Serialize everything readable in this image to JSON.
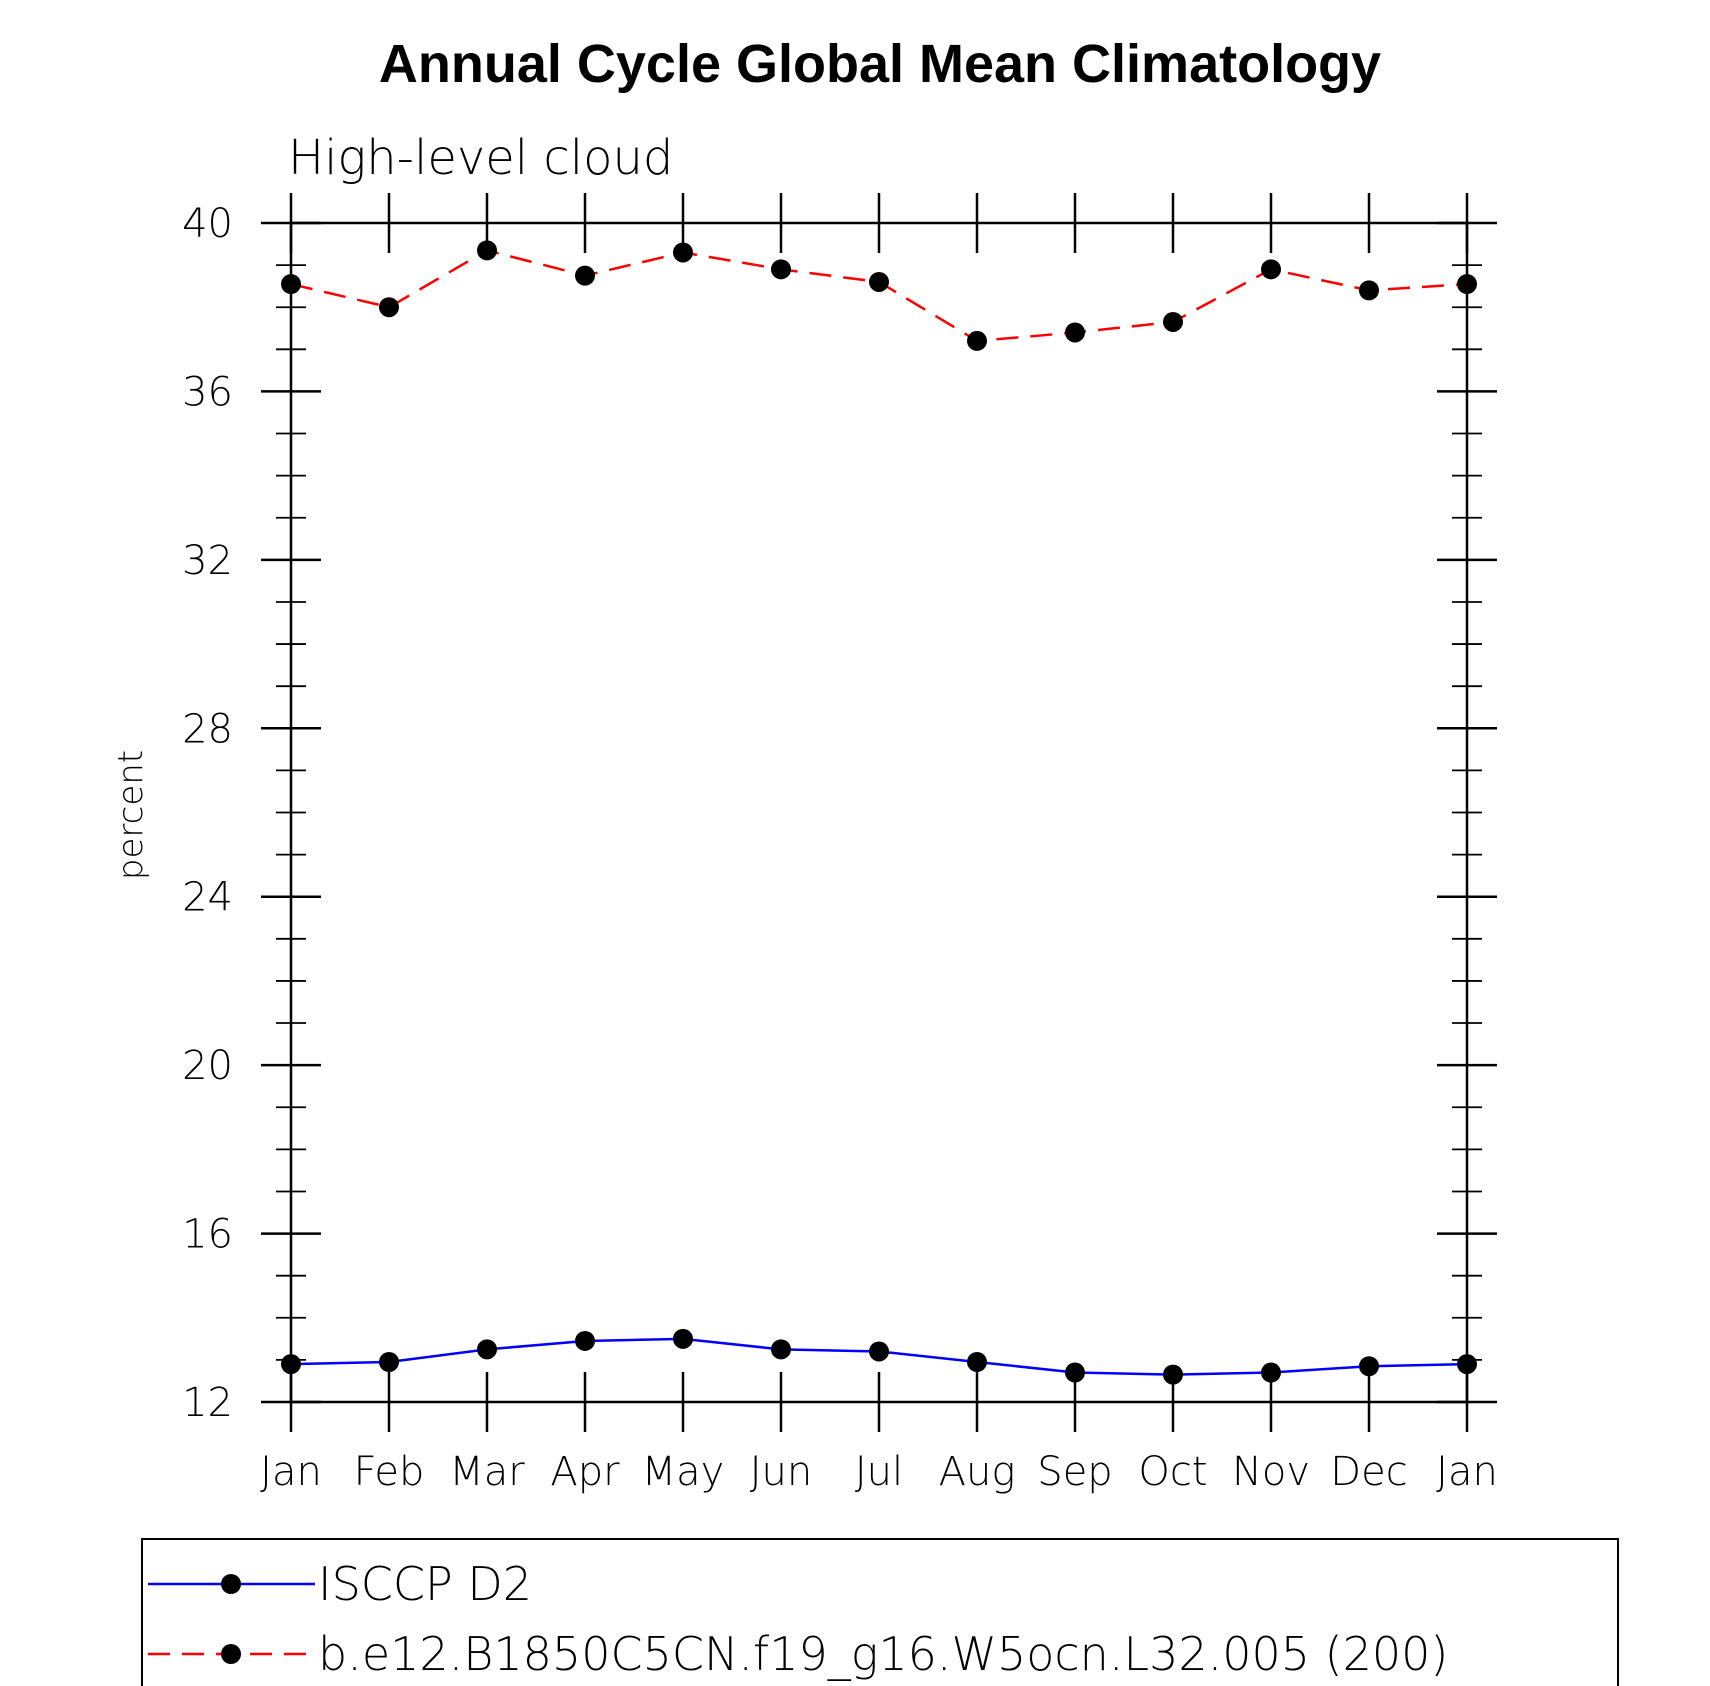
{
  "chart_data": {
    "type": "line",
    "title": "Annual Cycle Global Mean Climatology",
    "subtitle": "High-level cloud",
    "ylabel": "percent",
    "xlabel": "",
    "categories": [
      "Jan",
      "Feb",
      "Mar",
      "Apr",
      "May",
      "Jun",
      "Jul",
      "Aug",
      "Sep",
      "Oct",
      "Nov",
      "Dec",
      "Jan"
    ],
    "ylim": [
      12,
      40
    ],
    "yticks": [
      "12",
      "16",
      "20",
      "24",
      "28",
      "32",
      "36",
      "40"
    ],
    "grid": false,
    "legend_position": "bottom",
    "series": [
      {
        "name": "ISCCP D2",
        "color": "#0000ff",
        "line_style": "solid",
        "marker": "filled-circle",
        "values": [
          12.9,
          12.95,
          13.25,
          13.45,
          13.5,
          13.25,
          13.2,
          12.95,
          12.7,
          12.65,
          12.7,
          12.85,
          12.9
        ]
      },
      {
        "name": "b.e12.B1850C5CN.f19_g16.W5ocn.L32.005 (200)",
        "color": "#ff0000",
        "line_style": "dashed",
        "marker": "filled-circle",
        "values": [
          38.55,
          38.0,
          39.35,
          38.75,
          39.3,
          38.9,
          38.6,
          37.2,
          37.4,
          37.65,
          38.9,
          38.4,
          38.55
        ]
      }
    ]
  }
}
